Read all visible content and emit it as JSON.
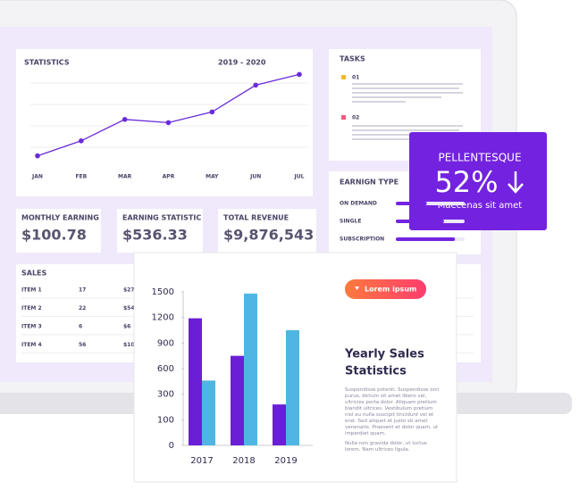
{
  "statistics_panel": {
    "title": "STATISTICS",
    "period": "2019 - 2020"
  },
  "chart_data": [
    {
      "type": "line",
      "categories": [
        "JAN",
        "FEB",
        "MAR",
        "APR",
        "MAY",
        "JUN",
        "JUL"
      ],
      "values": [
        12,
        26,
        46,
        43,
        53,
        78,
        88
      ],
      "color": "#6a2bd9",
      "ylim": [
        0,
        100
      ],
      "grid": true
    },
    {
      "type": "bar",
      "categories": [
        "2017",
        "2018",
        "2019"
      ],
      "series": [
        {
          "color": "#6a1fd6",
          "values": [
            1190,
            750,
            220
          ]
        },
        {
          "color": "#4fb6e3",
          "values": [
            460,
            1480,
            1050
          ]
        }
      ],
      "ylim": [
        0,
        1500
      ],
      "yticks": [
        0,
        100,
        300,
        600,
        900,
        1200,
        1500
      ]
    }
  ],
  "tasks": {
    "title": "TASKS",
    "items": [
      "01",
      "02"
    ]
  },
  "cards": [
    {
      "label": "MONTHLY EARNING",
      "value": "$100.78"
    },
    {
      "label": "EARNING STATISTIC",
      "value": "$536.33"
    },
    {
      "label": "TOTAL REVENUE",
      "value": "$9,876,543"
    }
  ],
  "sales": {
    "title": "SALES",
    "rows": [
      [
        "ITEM 1",
        "17",
        "$27"
      ],
      [
        "ITEM 2",
        "22",
        "$54"
      ],
      [
        "ITEM 3",
        "6",
        "$6"
      ],
      [
        "ITEM 4",
        "56",
        "$10"
      ]
    ]
  },
  "earning": {
    "title": "EARNIGN TYPE",
    "items": [
      {
        "label": "ON DEMAND",
        "progress": 45
      },
      {
        "label": "SINGLE",
        "progress": 70
      },
      {
        "label": "SUBSCRIPTION",
        "progress": 86
      }
    ]
  },
  "promo": {
    "title": "PELLENTESQUE",
    "value": "52%",
    "caption": "Maecenas sit amet"
  },
  "card": {
    "button": "Lorem ipsum",
    "heading": [
      "Yearly Sales",
      "Statistics"
    ],
    "paragraphs": [
      "Suspendisse potenti. Suspendisse orci purus, dictum sit amet libero vel, ultricies porta dolor. Aliquam pretium blandit ultrices. Vestibulum pretium nisl eu nulla suscipit tincidunt vel et erat. Sed aliquet et justo sit amet venenatis. Praesent et dolor quam, ut imperdiet quam.",
      "Nulla non gravida dolor, ut luctus lorem. Nam ultrices ligula."
    ]
  }
}
